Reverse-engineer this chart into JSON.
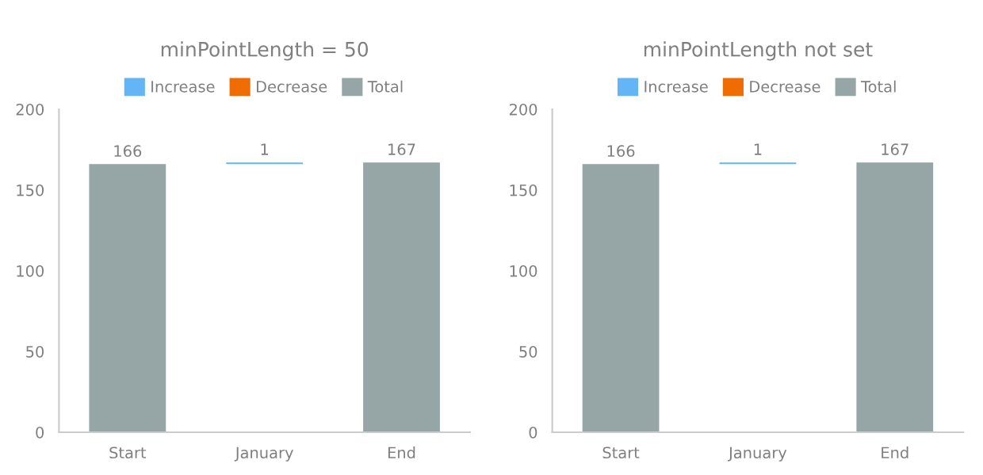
{
  "chart_data": [
    {
      "type": "bar",
      "title": "minPointLength = 50",
      "categories": [
        "Start",
        "January",
        "End"
      ],
      "series": [
        {
          "name": "Increase",
          "color": "#64b5f6",
          "values": [
            null,
            1,
            null
          ],
          "base": [
            null,
            166,
            null
          ]
        },
        {
          "name": "Decrease",
          "color": "#ef6c00",
          "values": [
            null,
            null,
            null
          ]
        },
        {
          "name": "Total",
          "color": "#96a6a6",
          "values": [
            166,
            null,
            167
          ]
        }
      ],
      "ylim": [
        0,
        200
      ],
      "yticks": [
        0,
        50,
        100,
        150,
        200
      ],
      "data_labels": true,
      "legend": "top",
      "grid": false
    },
    {
      "type": "bar",
      "title": "minPointLength not set",
      "categories": [
        "Start",
        "January",
        "End"
      ],
      "series": [
        {
          "name": "Increase",
          "color": "#64b5f6",
          "values": [
            null,
            1,
            null
          ],
          "base": [
            null,
            166,
            null
          ]
        },
        {
          "name": "Decrease",
          "color": "#ef6c00",
          "values": [
            null,
            null,
            null
          ]
        },
        {
          "name": "Total",
          "color": "#96a6a6",
          "values": [
            166,
            null,
            167
          ]
        }
      ],
      "ylim": [
        0,
        200
      ],
      "yticks": [
        0,
        50,
        100,
        150,
        200
      ],
      "data_labels": true,
      "legend": "top",
      "grid": false
    }
  ]
}
